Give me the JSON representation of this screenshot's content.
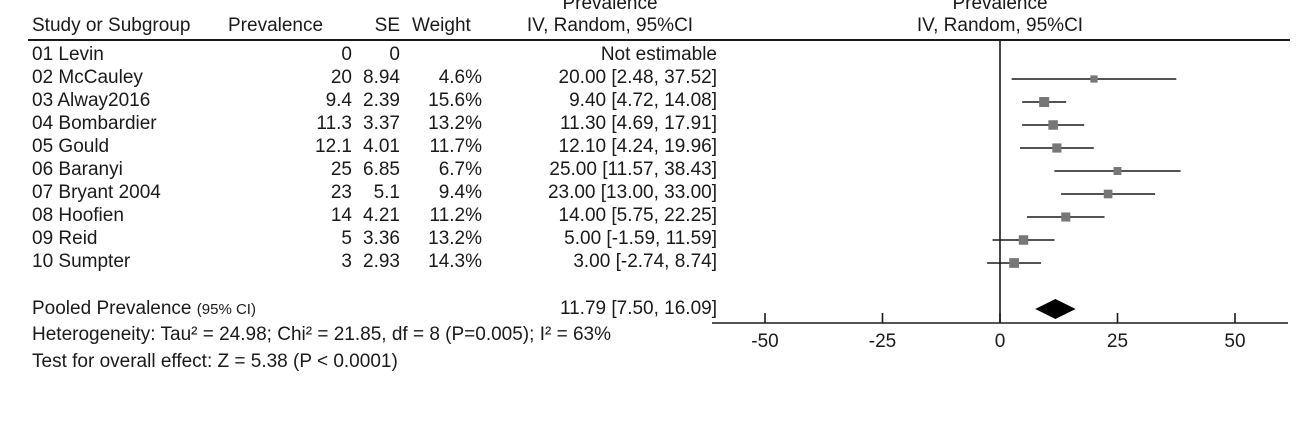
{
  "headers": {
    "study": "Study or Subgroup",
    "prevalence": "Prevalence",
    "se": "SE",
    "weight": "Weight",
    "ci_top": "Prevalence",
    "ci_bottom": "IV, Random, 95%CI",
    "plot_top": "Prevalence",
    "plot_bottom": "IV, Random, 95%CI"
  },
  "rows": [
    {
      "study": "01 Levin",
      "prevalence": "0",
      "se": "0",
      "weight": "",
      "ci_text": "Not estimable"
    },
    {
      "study": "02 McCauley",
      "prevalence": "20",
      "se": "8.94",
      "weight": "4.6%",
      "ci_text": "20.00 [2.48, 37.52]"
    },
    {
      "study": "03 Alway2016",
      "prevalence": "9.4",
      "se": "2.39",
      "weight": "15.6%",
      "ci_text": "9.40 [4.72, 14.08]"
    },
    {
      "study": "04 Bombardier",
      "prevalence": "11.3",
      "se": "3.37",
      "weight": "13.2%",
      "ci_text": "11.30 [4.69, 17.91]"
    },
    {
      "study": "05 Gould",
      "prevalence": "12.1",
      "se": "4.01",
      "weight": "11.7%",
      "ci_text": "12.10 [4.24, 19.96]"
    },
    {
      "study": "06 Baranyi",
      "prevalence": "25",
      "se": "6.85",
      "weight": "6.7%",
      "ci_text": "25.00 [11.57, 38.43]"
    },
    {
      "study": "07 Bryant 2004",
      "prevalence": "23",
      "se": "5.1",
      "weight": "9.4%",
      "ci_text": "23.00 [13.00, 33.00]"
    },
    {
      "study": "08 Hoofien",
      "prevalence": "14",
      "se": "4.21",
      "weight": "11.2%",
      "ci_text": "14.00 [5.75, 22.25]"
    },
    {
      "study": "09 Reid",
      "prevalence": "5",
      "se": "3.36",
      "weight": "13.2%",
      "ci_text": "5.00 [-1.59, 11.59]"
    },
    {
      "study": "10 Sumpter",
      "prevalence": "3",
      "se": "2.93",
      "weight": "14.3%",
      "ci_text": "3.00 [-2.74, 8.74]"
    }
  ],
  "pooled": {
    "label": "Pooled Prevalence",
    "label_suffix": "(95% CI)",
    "ci_text": "11.79 [7.50, 16.09]"
  },
  "heterogeneity": "Heterogeneity: Tau² = 24.98; Chi² = 21.85, df = 8 (P=0.005); I² = 63%",
  "overall_effect": "Test for overall effect: Z = 5.38 (P < 0.0001)",
  "colors": {
    "marker": "#777777",
    "line": "#1a1a1a",
    "diamond": "#000000"
  },
  "chart_data": {
    "type": "forest",
    "title": "Prevalence",
    "subtitle": "IV, Random, 95%CI",
    "xlim": [
      -60,
      60
    ],
    "ticks": [
      -50,
      -25,
      0,
      25,
      50
    ],
    "tick_labels": [
      "-50",
      "-25",
      "0",
      "25",
      "50"
    ],
    "reference_line": 0,
    "studies": [
      {
        "name": "01 Levin",
        "estimate": null,
        "lower": null,
        "upper": null,
        "weight": null
      },
      {
        "name": "02 McCauley",
        "estimate": 20.0,
        "lower": 2.48,
        "upper": 37.52,
        "weight": 4.6
      },
      {
        "name": "03 Alway2016",
        "estimate": 9.4,
        "lower": 4.72,
        "upper": 14.08,
        "weight": 15.6
      },
      {
        "name": "04 Bombardier",
        "estimate": 11.3,
        "lower": 4.69,
        "upper": 17.91,
        "weight": 13.2
      },
      {
        "name": "05 Gould",
        "estimate": 12.1,
        "lower": 4.24,
        "upper": 19.96,
        "weight": 11.7
      },
      {
        "name": "06 Baranyi",
        "estimate": 25.0,
        "lower": 11.57,
        "upper": 38.43,
        "weight": 6.7
      },
      {
        "name": "07 Bryant 2004",
        "estimate": 23.0,
        "lower": 13.0,
        "upper": 33.0,
        "weight": 9.4
      },
      {
        "name": "08 Hoofien",
        "estimate": 14.0,
        "lower": 5.75,
        "upper": 22.25,
        "weight": 11.2
      },
      {
        "name": "09 Reid",
        "estimate": 5.0,
        "lower": -1.59,
        "upper": 11.59,
        "weight": 13.2
      },
      {
        "name": "10 Sumpter",
        "estimate": 3.0,
        "lower": -2.74,
        "upper": 8.74,
        "weight": 14.3
      }
    ],
    "pooled": {
      "estimate": 11.79,
      "lower": 7.5,
      "upper": 16.09
    }
  }
}
